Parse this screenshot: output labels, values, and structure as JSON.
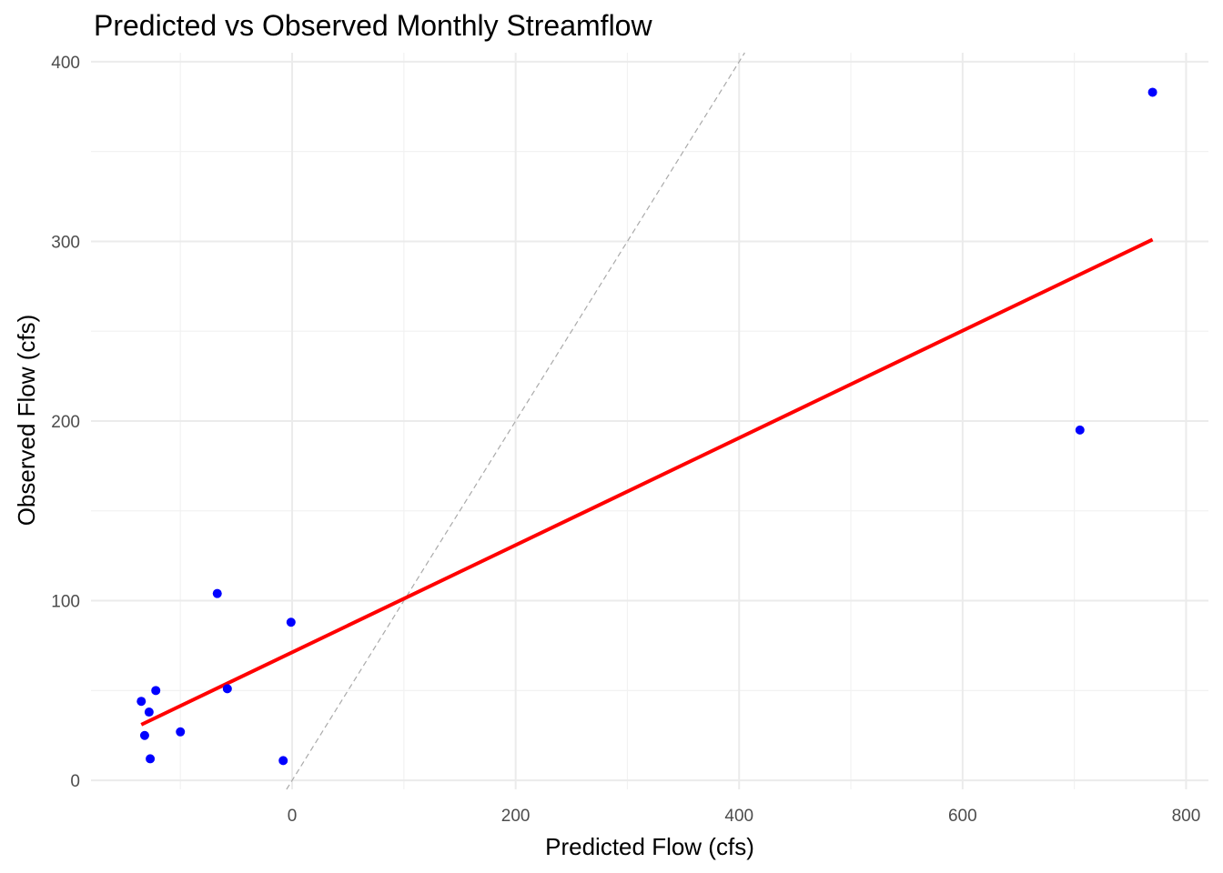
{
  "chart_data": {
    "type": "scatter",
    "title": "Predicted vs Observed Monthly Streamflow",
    "xlabel": "Predicted Flow (cfs)",
    "ylabel": "Observed Flow (cfs)",
    "xlim": [
      -180,
      820
    ],
    "ylim": [
      -5,
      405
    ],
    "x_ticks": [
      0,
      200,
      400,
      600,
      800
    ],
    "y_ticks": [
      0,
      100,
      200,
      300,
      400
    ],
    "x_minor_ticks": [
      -100,
      100,
      300,
      500,
      700
    ],
    "y_minor_ticks": [
      50,
      150,
      250,
      350
    ],
    "grid": true,
    "legend": "none",
    "series": [
      {
        "type": "scatter",
        "color": "#0000ff",
        "points": [
          {
            "x": 770,
            "y": 383
          },
          {
            "x": 705,
            "y": 195
          },
          {
            "x": -67,
            "y": 104
          },
          {
            "x": -1,
            "y": 88
          },
          {
            "x": -122,
            "y": 50
          },
          {
            "x": -58,
            "y": 51
          },
          {
            "x": -135,
            "y": 44
          },
          {
            "x": -128,
            "y": 38
          },
          {
            "x": -100,
            "y": 27
          },
          {
            "x": -132,
            "y": 25
          },
          {
            "x": -127,
            "y": 12
          },
          {
            "x": -8,
            "y": 11
          }
        ]
      },
      {
        "type": "line",
        "role": "linear-fit",
        "color": "#ff0000",
        "points": [
          {
            "x": -135,
            "y": 31
          },
          {
            "x": 770,
            "y": 301
          }
        ]
      },
      {
        "type": "line",
        "role": "1:1-reference",
        "color": "#aaaaaa",
        "dashed": true,
        "points": [
          {
            "x": -5,
            "y": -5
          },
          {
            "x": 405,
            "y": 405
          }
        ]
      }
    ]
  }
}
